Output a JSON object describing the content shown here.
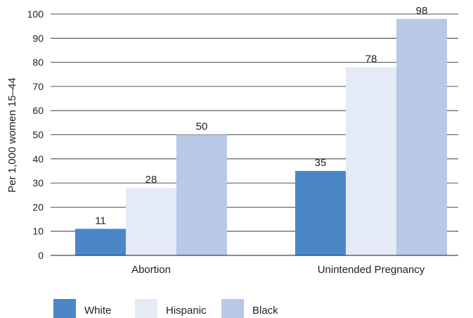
{
  "chart_data": {
    "type": "bar",
    "categories": [
      "Abortion",
      "Unintended Pregnancy"
    ],
    "series": [
      {
        "name": "White",
        "values": [
          11,
          35
        ],
        "color": "#4b86c8"
      },
      {
        "name": "Hispanic",
        "values": [
          28,
          78
        ],
        "color": "#e4eaf6"
      },
      {
        "name": "Black",
        "values": [
          50,
          98
        ],
        "color": "#b9c8e6"
      }
    ],
    "ylabel": "Per 1,000 women 15–44",
    "ylim": [
      0,
      100
    ],
    "yticks": [
      0,
      10,
      20,
      30,
      40,
      50,
      60,
      70,
      80,
      90,
      100
    ],
    "grid": true,
    "legend_position": "bottom-left",
    "data_labels": true
  }
}
